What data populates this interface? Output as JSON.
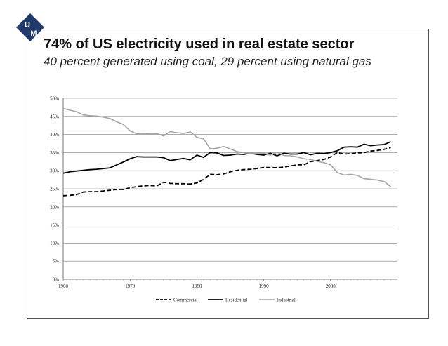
{
  "header": {
    "title": "74% of US electricity used in real estate sector",
    "subtitle": "40 percent generated using coal, 29 percent using natural gas"
  },
  "logo": {
    "letters": [
      "U",
      "M"
    ],
    "color": "#1f3a6b"
  },
  "chart_data": {
    "type": "line",
    "title": "",
    "xlabel": "",
    "ylabel": "",
    "xlim": [
      1960,
      2010
    ],
    "ylim": [
      0,
      50
    ],
    "x_ticks": [
      1960,
      1970,
      1980,
      1990,
      2000
    ],
    "y_ticks": [
      "0%",
      "5%",
      "10%",
      "15%",
      "20%",
      "25%",
      "30%",
      "35%",
      "40%",
      "45%",
      "50%"
    ],
    "grid": "horizontal",
    "legend_position": "bottom",
    "x": [
      1960,
      1961,
      1962,
      1963,
      1964,
      1965,
      1966,
      1967,
      1968,
      1969,
      1970,
      1971,
      1972,
      1973,
      1974,
      1975,
      1976,
      1977,
      1978,
      1979,
      1980,
      1981,
      1982,
      1983,
      1984,
      1985,
      1986,
      1987,
      1988,
      1989,
      1990,
      1991,
      1992,
      1993,
      1994,
      1995,
      1996,
      1997,
      1998,
      1999,
      2000,
      2001,
      2002,
      2003,
      2004,
      2005,
      2006,
      2007,
      2008,
      2009
    ],
    "series": [
      {
        "name": "Commercial",
        "color": "#000000",
        "style": "dashed",
        "values": [
          23.1,
          23.2,
          23.4,
          24.1,
          24.2,
          24.2,
          24.4,
          24.6,
          24.8,
          24.8,
          25.3,
          25.6,
          25.8,
          25.9,
          25.8,
          26.8,
          26.5,
          26.4,
          26.4,
          26.3,
          26.6,
          27.6,
          29.0,
          28.9,
          29.1,
          29.7,
          30.1,
          30.3,
          30.4,
          30.6,
          30.9,
          30.9,
          30.8,
          31.0,
          31.3,
          31.6,
          31.6,
          32.5,
          32.8,
          33.1,
          33.8,
          35.0,
          34.6,
          34.7,
          34.9,
          35.0,
          35.4,
          35.6,
          35.9,
          36.4
        ]
      },
      {
        "name": "Residential",
        "color": "#000000",
        "style": "solid",
        "values": [
          29.3,
          29.7,
          29.9,
          30.1,
          30.3,
          30.4,
          30.6,
          30.8,
          31.6,
          32.4,
          33.3,
          33.9,
          33.8,
          33.8,
          33.8,
          33.6,
          32.8,
          33.1,
          33.4,
          33.0,
          34.3,
          33.7,
          35.0,
          34.9,
          34.2,
          34.3,
          34.6,
          34.5,
          34.8,
          34.5,
          34.3,
          34.8,
          34.1,
          34.8,
          34.6,
          34.6,
          35.0,
          34.4,
          34.8,
          34.7,
          35.0,
          35.5,
          36.5,
          36.6,
          36.5,
          37.3,
          36.9,
          37.1,
          37.2,
          38.0
        ]
      },
      {
        "name": "Industrial",
        "color": "#a6a6a6",
        "style": "solid",
        "values": [
          47.2,
          46.7,
          46.3,
          45.4,
          45.2,
          45.1,
          44.8,
          44.4,
          43.5,
          42.8,
          41.0,
          40.2,
          40.3,
          40.2,
          40.3,
          39.6,
          40.8,
          40.5,
          40.3,
          40.7,
          39.2,
          38.8,
          36.0,
          36.2,
          36.7,
          36.0,
          35.3,
          35.0,
          34.8,
          34.8,
          34.8,
          34.3,
          35.1,
          34.2,
          34.1,
          33.8,
          33.3,
          33.1,
          32.6,
          32.2,
          31.6,
          29.5,
          28.8,
          29.0,
          28.7,
          27.8,
          27.6,
          27.4,
          27.0,
          25.6
        ]
      }
    ]
  }
}
